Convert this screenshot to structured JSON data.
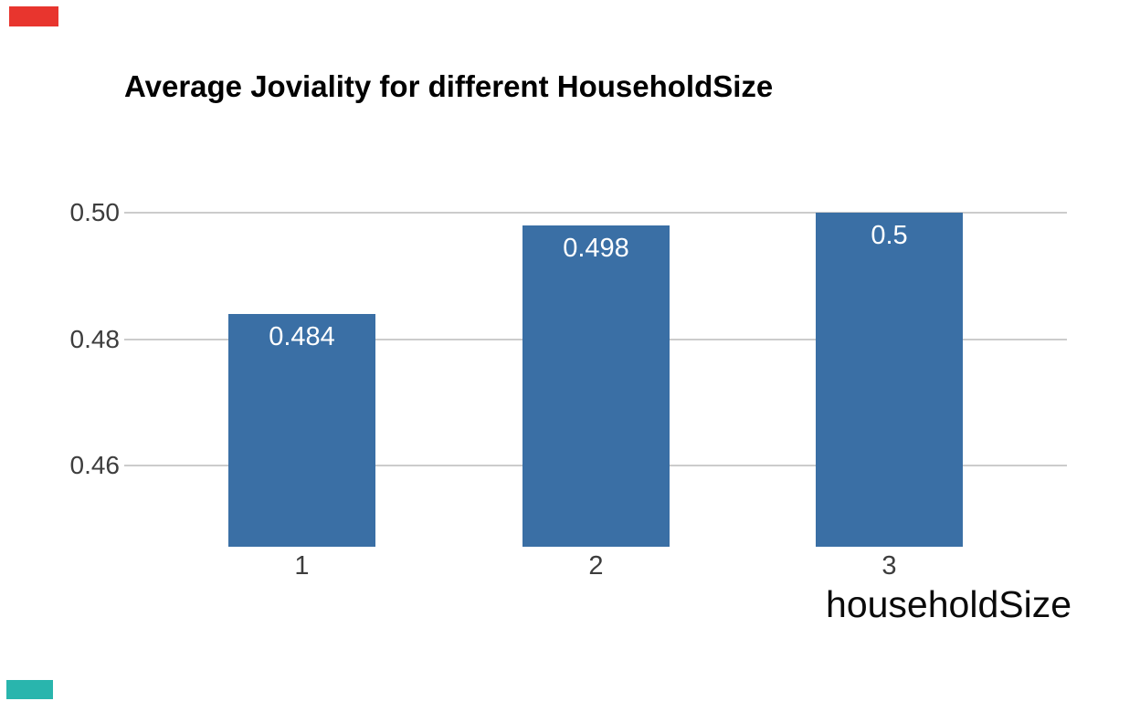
{
  "page": {
    "background": "#ffffff"
  },
  "colors": {
    "bar": "#3a6fa5",
    "bar_label_text": "#ffffff",
    "gridline": "#cccccc",
    "tick_text": "#3d3d3d",
    "title_text": "#000000",
    "axis_label_text": "#0a0a0a",
    "top_left_marker": "#e8352e",
    "bottom_left_marker": "#29b5ad"
  },
  "chart_data": {
    "type": "bar",
    "title": "Average Joviality for different HouseholdSize",
    "categories": [
      "1",
      "2",
      "3"
    ],
    "values": [
      0.484,
      0.498,
      0.5
    ],
    "value_labels": [
      "0.484",
      "0.498",
      "0.5"
    ],
    "xlabel": "householdSize",
    "ylabel": "",
    "yticks": [
      0.46,
      0.48,
      0.5
    ],
    "ytick_labels": [
      "0.46",
      "0.48",
      "0.50"
    ],
    "ylim": [
      0.447,
      0.5
    ],
    "grid": true,
    "legend": false,
    "bar_label_position": "inside-top",
    "xlabel_position": "bottom-right"
  }
}
